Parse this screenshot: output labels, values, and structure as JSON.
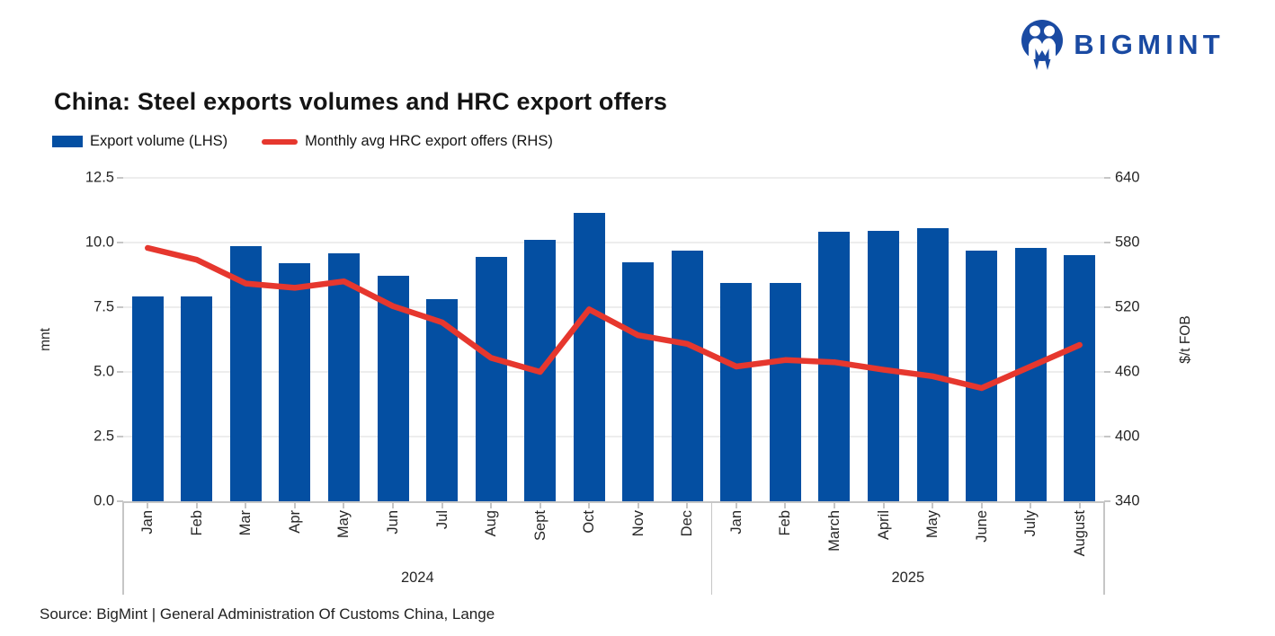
{
  "header": {
    "logo_text": "BIGMINT",
    "logo_color": "#1A4AA2"
  },
  "title": "China: Steel exports volumes and HRC export offers",
  "legend": [
    {
      "label": "Export volume (LHS)",
      "type": "bar",
      "color": "#044FA2"
    },
    {
      "label": "Monthly avg HRC export offers (RHS)",
      "type": "line",
      "color": "#E6372E"
    }
  ],
  "chart_data": {
    "type": "bar+line",
    "categories": [
      "Jan",
      "Feb",
      "Mar",
      "Apr",
      "May",
      "Jun",
      "Jul",
      "Aug",
      "Sept",
      "Oct",
      "Nov",
      "Dec",
      "Jan",
      "Feb",
      "March",
      "April",
      "May",
      "June",
      "July",
      "August"
    ],
    "groups": [
      {
        "label": "2024",
        "count": 12
      },
      {
        "label": "2025",
        "count": 8
      }
    ],
    "series": [
      {
        "name": "Export volume (LHS)",
        "type": "bar",
        "axis": "left",
        "color": "#044FA2",
        "values": [
          7.9,
          7.9,
          9.85,
          9.2,
          9.6,
          8.7,
          7.8,
          9.45,
          10.1,
          11.15,
          9.25,
          9.7,
          8.45,
          8.45,
          10.4,
          10.45,
          10.55,
          9.7,
          9.8,
          9.5
        ]
      },
      {
        "name": "Monthly avg HRC export offers (RHS)",
        "type": "line",
        "axis": "right",
        "color": "#E6372E",
        "values": [
          575,
          564,
          542,
          538,
          544,
          521,
          506,
          473,
          460,
          518,
          494,
          486,
          465,
          471,
          469,
          462,
          456,
          445,
          465,
          485
        ]
      }
    ],
    "left_axis": {
      "label": "mnt",
      "min": 0,
      "max": 12.5,
      "ticks": [
        "0.0",
        "2.5",
        "5.0",
        "7.5",
        "10.0",
        "12.5"
      ]
    },
    "right_axis": {
      "label": "$/t FOB",
      "min": 340,
      "max": 640,
      "ticks": [
        "340",
        "400",
        "460",
        "520",
        "580",
        "640"
      ]
    },
    "grid": true,
    "legend_position": "top-left"
  },
  "source": "Source: BigMint | General Administration Of Customs China, Lange"
}
